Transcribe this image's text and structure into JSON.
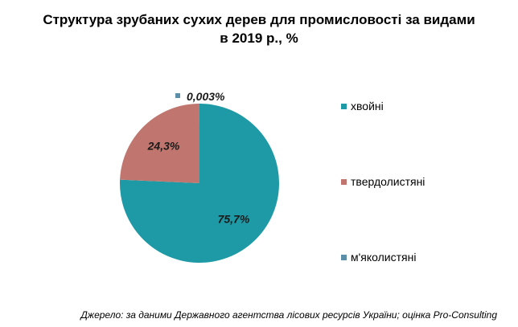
{
  "chart_data": {
    "type": "pie",
    "title_lines": [
      "Структура зрубаних сухих дерев для промисловості за видами",
      "в 2019 р., %"
    ],
    "slices": [
      {
        "name": "хвойні",
        "value": 75.7,
        "label": "75,7%",
        "color": "#1e9aa6"
      },
      {
        "name": "твердолистяні",
        "value": 24.3,
        "label": "24,3%",
        "color": "#c0766e"
      },
      {
        "name": "м'яколистяні",
        "value": 0.003,
        "label": "0,003%",
        "color": "#5b8fa8"
      }
    ],
    "legend_position": "right"
  },
  "source": "Джерело: за даними Державного агентства лісових ресурсів України; оцінка Pro-Consulting"
}
